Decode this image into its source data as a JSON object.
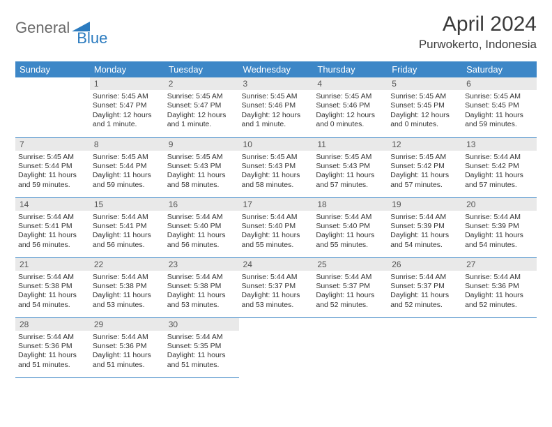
{
  "brand": {
    "part1": "General",
    "part2": "Blue"
  },
  "title": "April 2024",
  "location": "Purwokerto, Indonesia",
  "colors": {
    "header_bg": "#3d87c7",
    "header_text": "#ffffff",
    "daynum_bg": "#e9e9e9",
    "border": "#2b7bbf",
    "brand_gray": "#6a6a6a",
    "brand_blue": "#2b7bbf"
  },
  "dayHeaders": [
    "Sunday",
    "Monday",
    "Tuesday",
    "Wednesday",
    "Thursday",
    "Friday",
    "Saturday"
  ],
  "grid": [
    [
      null,
      {
        "n": "1",
        "sr": "5:45 AM",
        "ss": "5:47 PM",
        "dl": "12 hours and 1 minute."
      },
      {
        "n": "2",
        "sr": "5:45 AM",
        "ss": "5:47 PM",
        "dl": "12 hours and 1 minute."
      },
      {
        "n": "3",
        "sr": "5:45 AM",
        "ss": "5:46 PM",
        "dl": "12 hours and 1 minute."
      },
      {
        "n": "4",
        "sr": "5:45 AM",
        "ss": "5:46 PM",
        "dl": "12 hours and 0 minutes."
      },
      {
        "n": "5",
        "sr": "5:45 AM",
        "ss": "5:45 PM",
        "dl": "12 hours and 0 minutes."
      },
      {
        "n": "6",
        "sr": "5:45 AM",
        "ss": "5:45 PM",
        "dl": "11 hours and 59 minutes."
      }
    ],
    [
      {
        "n": "7",
        "sr": "5:45 AM",
        "ss": "5:44 PM",
        "dl": "11 hours and 59 minutes."
      },
      {
        "n": "8",
        "sr": "5:45 AM",
        "ss": "5:44 PM",
        "dl": "11 hours and 59 minutes."
      },
      {
        "n": "9",
        "sr": "5:45 AM",
        "ss": "5:43 PM",
        "dl": "11 hours and 58 minutes."
      },
      {
        "n": "10",
        "sr": "5:45 AM",
        "ss": "5:43 PM",
        "dl": "11 hours and 58 minutes."
      },
      {
        "n": "11",
        "sr": "5:45 AM",
        "ss": "5:43 PM",
        "dl": "11 hours and 57 minutes."
      },
      {
        "n": "12",
        "sr": "5:45 AM",
        "ss": "5:42 PM",
        "dl": "11 hours and 57 minutes."
      },
      {
        "n": "13",
        "sr": "5:44 AM",
        "ss": "5:42 PM",
        "dl": "11 hours and 57 minutes."
      }
    ],
    [
      {
        "n": "14",
        "sr": "5:44 AM",
        "ss": "5:41 PM",
        "dl": "11 hours and 56 minutes."
      },
      {
        "n": "15",
        "sr": "5:44 AM",
        "ss": "5:41 PM",
        "dl": "11 hours and 56 minutes."
      },
      {
        "n": "16",
        "sr": "5:44 AM",
        "ss": "5:40 PM",
        "dl": "11 hours and 56 minutes."
      },
      {
        "n": "17",
        "sr": "5:44 AM",
        "ss": "5:40 PM",
        "dl": "11 hours and 55 minutes."
      },
      {
        "n": "18",
        "sr": "5:44 AM",
        "ss": "5:40 PM",
        "dl": "11 hours and 55 minutes."
      },
      {
        "n": "19",
        "sr": "5:44 AM",
        "ss": "5:39 PM",
        "dl": "11 hours and 54 minutes."
      },
      {
        "n": "20",
        "sr": "5:44 AM",
        "ss": "5:39 PM",
        "dl": "11 hours and 54 minutes."
      }
    ],
    [
      {
        "n": "21",
        "sr": "5:44 AM",
        "ss": "5:38 PM",
        "dl": "11 hours and 54 minutes."
      },
      {
        "n": "22",
        "sr": "5:44 AM",
        "ss": "5:38 PM",
        "dl": "11 hours and 53 minutes."
      },
      {
        "n": "23",
        "sr": "5:44 AM",
        "ss": "5:38 PM",
        "dl": "11 hours and 53 minutes."
      },
      {
        "n": "24",
        "sr": "5:44 AM",
        "ss": "5:37 PM",
        "dl": "11 hours and 53 minutes."
      },
      {
        "n": "25",
        "sr": "5:44 AM",
        "ss": "5:37 PM",
        "dl": "11 hours and 52 minutes."
      },
      {
        "n": "26",
        "sr": "5:44 AM",
        "ss": "5:37 PM",
        "dl": "11 hours and 52 minutes."
      },
      {
        "n": "27",
        "sr": "5:44 AM",
        "ss": "5:36 PM",
        "dl": "11 hours and 52 minutes."
      }
    ],
    [
      {
        "n": "28",
        "sr": "5:44 AM",
        "ss": "5:36 PM",
        "dl": "11 hours and 51 minutes."
      },
      {
        "n": "29",
        "sr": "5:44 AM",
        "ss": "5:36 PM",
        "dl": "11 hours and 51 minutes."
      },
      {
        "n": "30",
        "sr": "5:44 AM",
        "ss": "5:35 PM",
        "dl": "11 hours and 51 minutes."
      },
      null,
      null,
      null,
      null
    ]
  ],
  "labels": {
    "sunrise": "Sunrise:",
    "sunset": "Sunset:",
    "daylight": "Daylight:"
  }
}
